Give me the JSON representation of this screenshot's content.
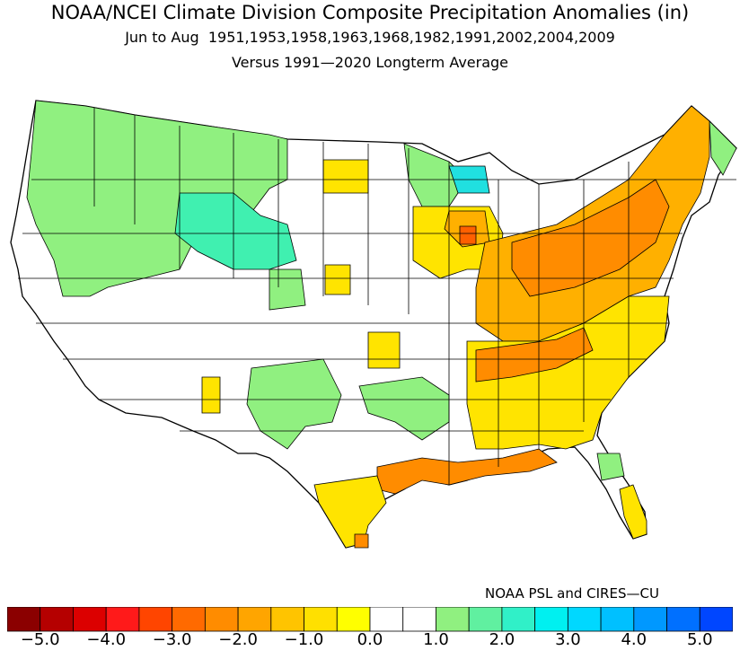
{
  "titles": {
    "line1": "NOAA/NCEI Climate Division Composite Precipitation Anomalies (in)",
    "line2": "Jun to Aug  1951,1953,1958,1963,1968,1982,1991,2002,2004,2009",
    "line3": "Versus 1991—2020 Longterm Average"
  },
  "credit": "NOAA PSL and CIRES—CU",
  "legend": {
    "colors": [
      "#8b0000",
      "#b50000",
      "#dc0000",
      "#ff1a1a",
      "#ff4500",
      "#ff6a00",
      "#ff8c00",
      "#ffa500",
      "#ffc400",
      "#ffe000",
      "#ffff00",
      "#ffffff",
      "#ffffff",
      "#90f080",
      "#60f0a0",
      "#30f0c8",
      "#00f0f0",
      "#00d8ff",
      "#00c0ff",
      "#0098ff",
      "#0070ff",
      "#0046ff"
    ],
    "tick_labels": [
      "−5.0",
      "−4.0",
      "−3.0",
      "−2.0",
      "−1.0",
      "0.0",
      "1.0",
      "2.0",
      "3.0",
      "4.0",
      "5.0"
    ]
  },
  "colors": {
    "strong_dry": "#ff8c00",
    "moderate_dry": "#ffb000",
    "slight_dry": "#ffe400",
    "very_slight_dry": "#ffff00",
    "near_normal": "#ffffff",
    "slight_wet": "#90f080",
    "moderate_wet": "#40f0b0",
    "wetter": "#20e0e0",
    "extreme_dry_spot": "#ff6000"
  }
}
